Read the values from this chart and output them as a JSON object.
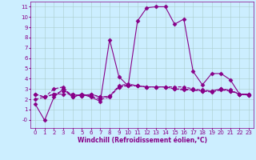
{
  "title": "",
  "xlabel": "Windchill (Refroidissement éolien,°C)",
  "background_color": "#cceeff",
  "grid_color": "#aacccc",
  "line_color": "#880088",
  "xlim": [
    -0.5,
    23.5
  ],
  "ylim": [
    -0.8,
    11.5
  ],
  "yticks": [
    0,
    1,
    2,
    3,
    4,
    5,
    6,
    7,
    8,
    9,
    10,
    11
  ],
  "ytick_labels": [
    "-0",
    "1",
    "2",
    "3",
    "4",
    "5",
    "6",
    "7",
    "8",
    "9",
    "10",
    "11"
  ],
  "xticks": [
    0,
    1,
    2,
    3,
    4,
    5,
    6,
    7,
    8,
    9,
    10,
    11,
    12,
    13,
    14,
    15,
    16,
    17,
    18,
    19,
    20,
    21,
    22,
    23
  ],
  "series": [
    {
      "x": [
        0,
        1,
        2,
        3,
        4,
        5,
        6,
        7,
        8,
        9,
        10,
        11,
        12,
        13,
        14,
        15,
        16,
        17,
        18,
        19,
        20,
        21,
        22,
        23
      ],
      "y": [
        1.5,
        -0.05,
        2.2,
        3.0,
        2.2,
        2.5,
        2.2,
        1.8,
        7.8,
        4.2,
        3.3,
        9.6,
        10.9,
        11.0,
        11.0,
        9.3,
        9.8,
        4.7,
        3.4,
        4.5,
        4.5,
        3.9,
        2.5,
        2.4
      ],
      "style": "-",
      "marker": "D",
      "markersize": 2.5,
      "lw": 0.8
    },
    {
      "x": [
        0,
        1,
        2,
        3,
        4,
        5,
        6,
        7,
        8,
        9,
        10,
        11,
        12,
        13,
        14,
        15,
        16,
        17,
        18,
        19,
        20,
        21,
        22,
        23
      ],
      "y": [
        2.5,
        2.2,
        2.5,
        2.8,
        2.5,
        2.3,
        2.5,
        2.2,
        2.3,
        3.3,
        3.5,
        3.3,
        3.2,
        3.2,
        3.2,
        3.2,
        3.2,
        3.0,
        2.9,
        2.8,
        3.0,
        2.9,
        2.5,
        2.5
      ],
      "style": "--",
      "marker": "D",
      "markersize": 2.5,
      "lw": 0.8
    },
    {
      "x": [
        0,
        1,
        2,
        3,
        4,
        5,
        6,
        7,
        8,
        9,
        10,
        11,
        12,
        13,
        14,
        15,
        16,
        17,
        18,
        19,
        20,
        21,
        22,
        23
      ],
      "y": [
        2.5,
        2.2,
        3.0,
        3.2,
        2.2,
        2.5,
        2.3,
        2.0,
        2.2,
        3.2,
        3.3,
        3.3,
        3.2,
        3.2,
        3.2,
        3.0,
        3.0,
        2.9,
        2.8,
        2.8,
        3.0,
        2.8,
        2.5,
        2.4
      ],
      "style": "--",
      "marker": "D",
      "markersize": 2.5,
      "lw": 0.8
    },
    {
      "x": [
        0,
        1,
        2,
        3,
        4,
        5,
        6,
        7,
        8,
        9,
        10,
        11,
        12,
        13,
        14,
        15,
        16,
        17,
        18,
        19,
        20,
        21,
        22,
        23
      ],
      "y": [
        2.0,
        2.2,
        2.5,
        2.5,
        2.5,
        2.3,
        2.5,
        2.2,
        2.3,
        3.2,
        3.4,
        3.3,
        3.2,
        3.2,
        3.2,
        3.0,
        2.9,
        2.9,
        2.8,
        2.7,
        2.9,
        2.8,
        2.5,
        2.5
      ],
      "style": "--",
      "marker": "D",
      "markersize": 2.5,
      "lw": 0.8
    }
  ],
  "axis_fontsize": 5.5,
  "tick_fontsize": 5
}
